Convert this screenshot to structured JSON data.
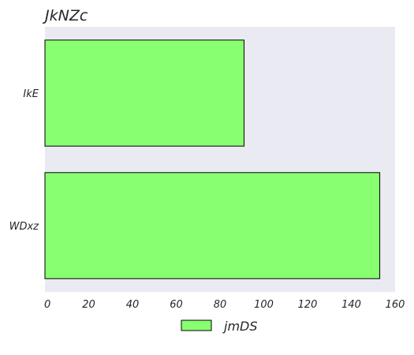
{
  "chart_data": {
    "type": "bar",
    "orientation": "horizontal",
    "title": "JkNZc",
    "xlabel": "",
    "ylabel": "",
    "categories": [
      "IkE",
      "WDxz"
    ],
    "series": [
      {
        "name": "jmDS",
        "values": [
          91,
          153
        ],
        "color": "#88ff71"
      }
    ],
    "xlim": [
      0,
      160
    ],
    "xticks": [
      0,
      20,
      40,
      60,
      80,
      100,
      120,
      140,
      160
    ],
    "grid": false,
    "legend_position": "bottom-center",
    "background_color": "#eaeaf2",
    "edge_color": "#000000"
  }
}
